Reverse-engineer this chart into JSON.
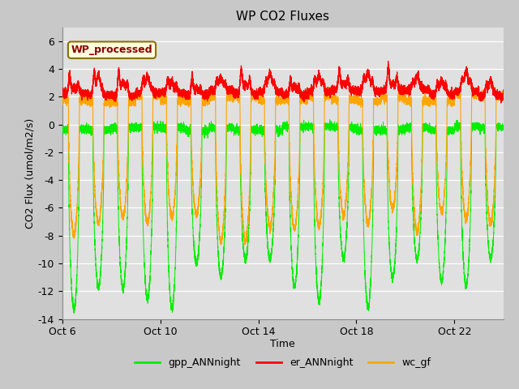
{
  "title": "WP CO2 Fluxes",
  "xlabel": "Time",
  "ylabel": "CO2 Flux (umol/m2/s)",
  "ylim": [
    -14,
    7
  ],
  "yticks": [
    -14,
    -12,
    -10,
    -8,
    -6,
    -4,
    -2,
    0,
    2,
    4,
    6
  ],
  "xtick_labels": [
    "Oct 6",
    "Oct 10",
    "Oct 14",
    "Oct 18",
    "Oct 22"
  ],
  "xtick_positions": [
    0,
    4,
    8,
    12,
    16
  ],
  "annotation_text": "WP_processed",
  "annotation_color": "#8B0000",
  "annotation_bg": "#FFFFE0",
  "annotation_edge": "#8B7000",
  "line_colors": {
    "gpp": "#00EE00",
    "er": "#FF0000",
    "wc": "#FFA500"
  },
  "legend_labels": [
    "gpp_ANNnight",
    "er_ANNnight",
    "wc_gf"
  ],
  "fig_bg_color": "#C8C8C8",
  "plot_bg_color": "#E0E0E0",
  "grid_color": "#BEBEBE",
  "n_days": 18,
  "seed": 42
}
